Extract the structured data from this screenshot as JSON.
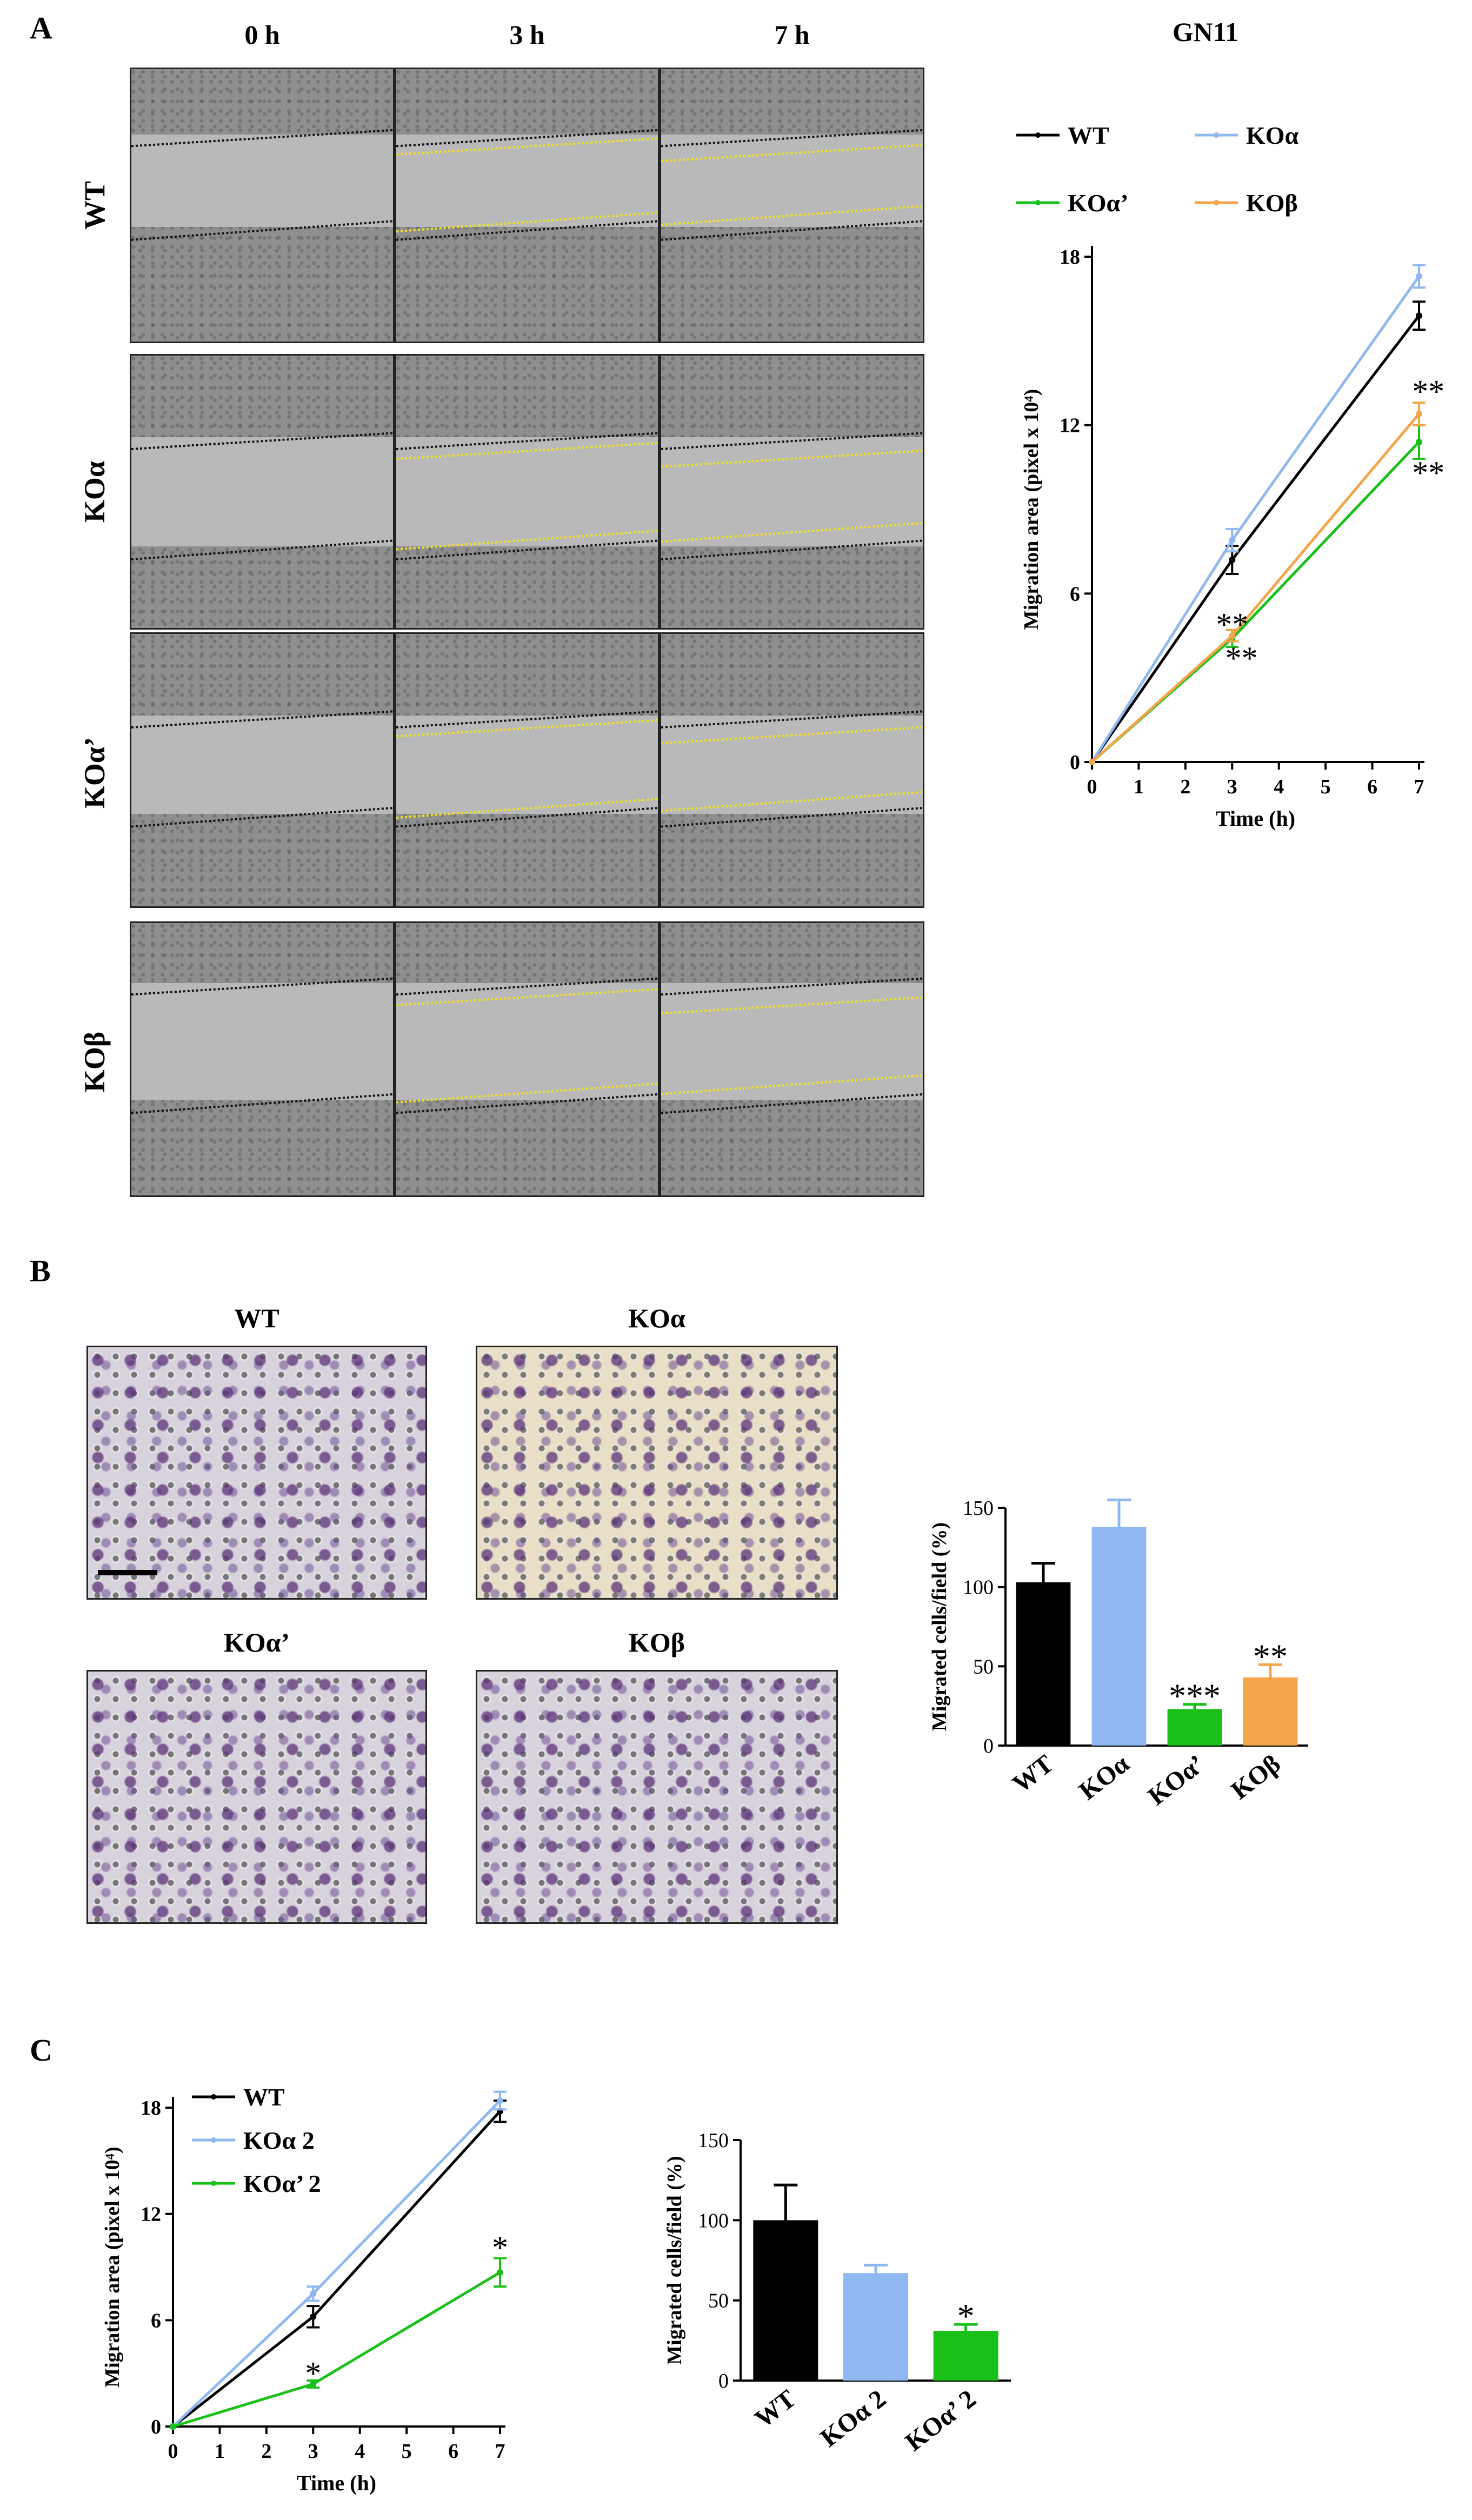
{
  "panels": {
    "A": "A",
    "B": "B",
    "C": "C"
  },
  "panelA": {
    "col_headers": [
      "0 h",
      "3 h",
      "7 h"
    ],
    "row_labels": [
      "WT",
      "KOα",
      "KOα’",
      "KOβ"
    ]
  },
  "panelB": {
    "image_labels": [
      "WT",
      "KOα",
      "KOα’",
      "KOβ"
    ]
  },
  "colors": {
    "WT": "#000000",
    "KOa": "#8fb8f0",
    "KOa_prime": "#18c018",
    "KOb": "#f4a54a"
  },
  "chart_data": [
    {
      "id": "A-line",
      "type": "line",
      "title": "GN11",
      "xlabel": "Time (h)",
      "ylabel": "Migration area (pixel x 10⁴)",
      "xlim": [
        0,
        7
      ],
      "ylim": [
        0,
        18
      ],
      "xticks": [
        "0",
        "1",
        "2",
        "3",
        "4",
        "5",
        "6",
        "7"
      ],
      "yticks": [
        "0",
        "6",
        "12",
        "18"
      ],
      "x": [
        0,
        3,
        7
      ],
      "series": [
        {
          "name": "WT",
          "color": "#000000",
          "values": [
            0,
            7.2,
            15.9
          ],
          "errors": [
            0,
            0.5,
            0.5
          ]
        },
        {
          "name": "KOα",
          "color": "#8fb8f0",
          "values": [
            0,
            7.9,
            17.3
          ],
          "errors": [
            0,
            0.4,
            0.4
          ]
        },
        {
          "name": "KOα’",
          "color": "#18c018",
          "values": [
            0,
            4.4,
            11.4
          ],
          "errors": [
            0,
            0.3,
            0.6
          ]
        },
        {
          "name": "KOβ",
          "color": "#f4a54a",
          "values": [
            0,
            4.5,
            12.4
          ],
          "errors": [
            0,
            0.2,
            0.4
          ]
        }
      ],
      "annotations": [
        {
          "text": "**",
          "x": 3,
          "y": 4.9
        },
        {
          "text": "**",
          "x": 3.2,
          "y": 3.7
        },
        {
          "text": "**",
          "x": 7.2,
          "y": 13.2
        },
        {
          "text": "**",
          "x": 7.2,
          "y": 10.3
        }
      ],
      "legend": "top, two rows"
    },
    {
      "id": "B-bar",
      "type": "bar",
      "ylabel": "Migrated cells/field (%)",
      "ylim": [
        0,
        150
      ],
      "yticks": [
        "0",
        "50",
        "100",
        "150"
      ],
      "categories": [
        "WT",
        "KOα",
        "KOα’",
        "KOβ"
      ],
      "values": [
        103,
        138,
        23,
        43
      ],
      "errors": [
        12,
        17,
        3,
        8
      ],
      "colors": [
        "#000000",
        "#8fb8f0",
        "#18c018",
        "#f4a54a"
      ],
      "significance": [
        "",
        "",
        "***",
        "**"
      ]
    },
    {
      "id": "C-line",
      "type": "line",
      "xlabel": "Time (h)",
      "ylabel": "Migration area (pixel x 10⁴)",
      "xlim": [
        0,
        7
      ],
      "ylim": [
        0,
        18
      ],
      "xticks": [
        "0",
        "1",
        "2",
        "3",
        "4",
        "5",
        "6",
        "7"
      ],
      "yticks": [
        "0",
        "6",
        "12",
        "18"
      ],
      "x": [
        0,
        3,
        7
      ],
      "series": [
        {
          "name": "WT",
          "color": "#000000",
          "values": [
            0,
            6.2,
            17.8
          ],
          "errors": [
            0,
            0.6,
            0.6
          ]
        },
        {
          "name": "KOα 2",
          "color": "#8fb8f0",
          "values": [
            0,
            7.5,
            18.4
          ],
          "errors": [
            0,
            0.4,
            0.5
          ]
        },
        {
          "name": "KOα’ 2",
          "color": "#18c018",
          "values": [
            0,
            2.4,
            8.7
          ],
          "errors": [
            0,
            0.2,
            0.8
          ]
        }
      ],
      "annotations": [
        {
          "text": "*",
          "x": 3,
          "y": 3.0
        },
        {
          "text": "*",
          "x": 7,
          "y": 10.1
        }
      ],
      "legend": "top-left"
    },
    {
      "id": "C-bar",
      "type": "bar",
      "ylabel": "Migrated cells/field (%)",
      "ylim": [
        0,
        150
      ],
      "yticks": [
        "0",
        "50",
        "100",
        "150"
      ],
      "categories": [
        "WT",
        "KOα 2",
        "KOα’ 2"
      ],
      "values": [
        100,
        67,
        31
      ],
      "errors": [
        22,
        5,
        4
      ],
      "colors": [
        "#000000",
        "#8fb8f0",
        "#18c018"
      ],
      "significance": [
        "",
        "",
        "*"
      ]
    }
  ]
}
